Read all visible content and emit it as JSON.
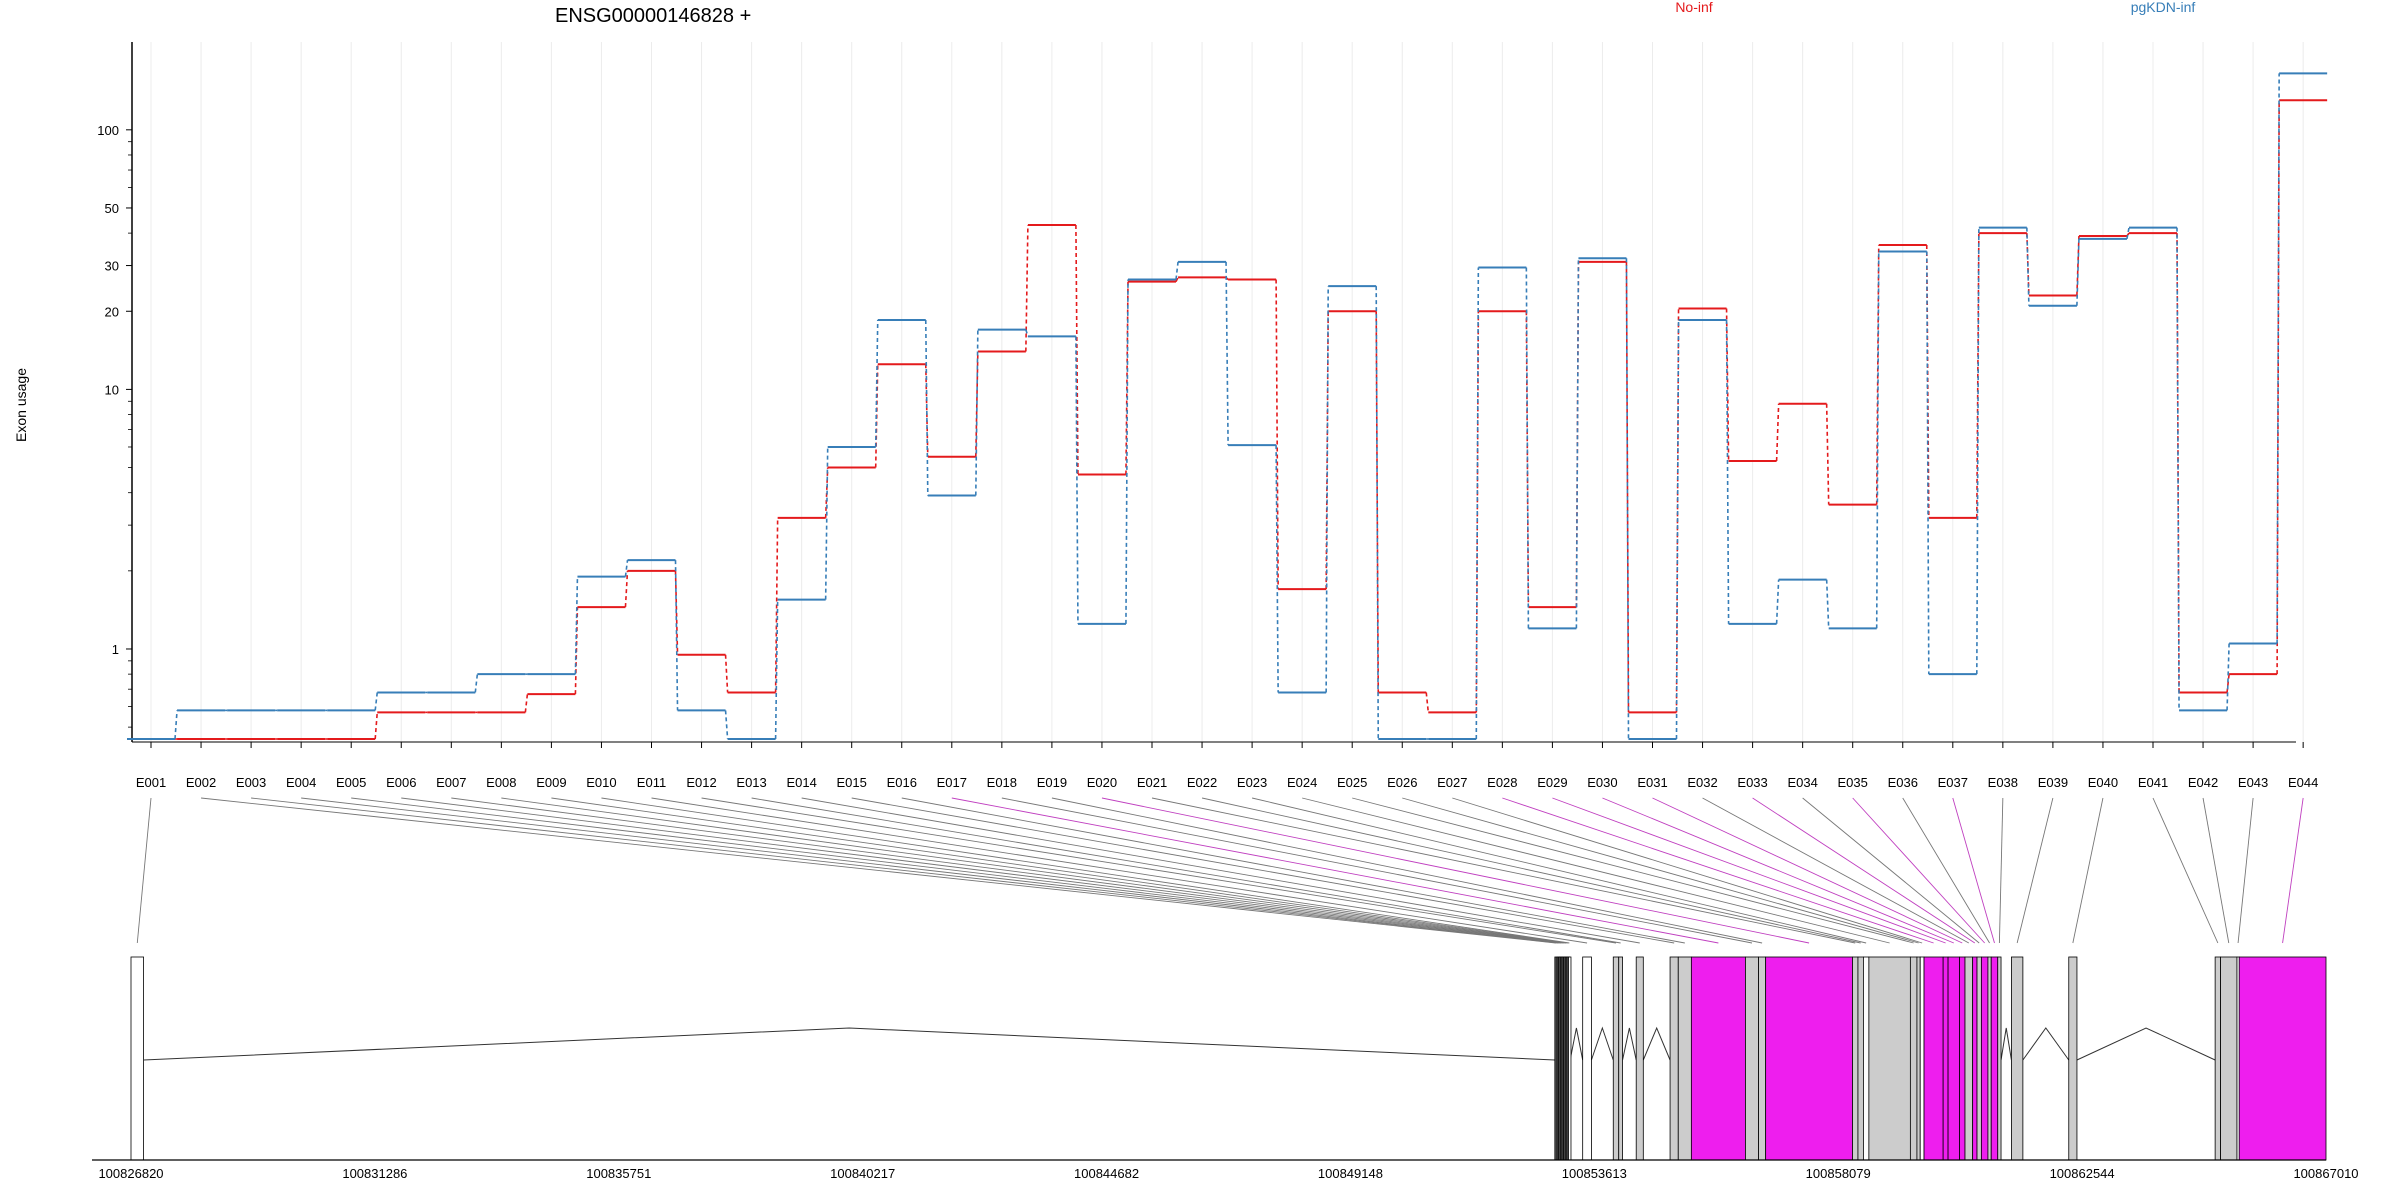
{
  "chart_data": {
    "type": "line",
    "title": "ENSG00000146828 +",
    "ylabel": "Exon usage",
    "xlabel": "",
    "y_scale": "log",
    "ylim": [
      0.45,
      170
    ],
    "yticks": [
      1,
      10,
      20,
      30,
      50,
      100
    ],
    "grid": "vertical, light",
    "legend_placement": "top",
    "categories": [
      "E001",
      "E002",
      "E003",
      "E004",
      "E005",
      "E006",
      "E007",
      "E008",
      "E009",
      "E010",
      "E011",
      "E012",
      "E013",
      "E014",
      "E015",
      "E016",
      "E017",
      "E018",
      "E019",
      "E020",
      "E021",
      "E022",
      "E023",
      "E024",
      "E025",
      "E026",
      "E027",
      "E028",
      "E029",
      "E030",
      "E031",
      "E032",
      "E033",
      "E034",
      "E035",
      "E036",
      "E037",
      "E038",
      "E039",
      "E040",
      "E041",
      "E042",
      "E043",
      "E044"
    ],
    "series": [
      {
        "name": "No-inf",
        "color": "#e41a1c",
        "line_style": "dashed",
        "values": [
          0.45,
          0.45,
          0.45,
          0.45,
          0.45,
          0.57,
          0.57,
          0.57,
          0.67,
          1.45,
          2.0,
          0.95,
          0.68,
          3.2,
          5.0,
          12.5,
          5.5,
          14.0,
          43.0,
          4.7,
          26.0,
          27.0,
          26.5,
          1.7,
          20.0,
          0.68,
          0.57,
          20.0,
          1.45,
          31.0,
          0.57,
          20.5,
          5.3,
          8.8,
          3.6,
          36.0,
          3.2,
          40.0,
          23.0,
          39.0,
          40.0,
          0.68,
          0.8,
          130.0
        ]
      },
      {
        "name": "pgKDN-inf",
        "color": "#377eb8",
        "line_style": "dashed",
        "values": [
          0.45,
          0.58,
          0.58,
          0.58,
          0.58,
          0.68,
          0.68,
          0.8,
          0.8,
          1.9,
          2.2,
          0.58,
          0.45,
          1.55,
          6.0,
          18.5,
          3.9,
          17.0,
          16.0,
          1.25,
          26.5,
          31.0,
          6.1,
          0.68,
          25.0,
          0.45,
          0.45,
          29.5,
          1.2,
          32.0,
          0.45,
          18.5,
          1.25,
          1.85,
          1.2,
          34.0,
          0.8,
          42.0,
          21.0,
          38.0,
          42.0,
          0.58,
          1.05,
          165.0
        ]
      }
    ],
    "genomic_axis": {
      "tick_labels": [
        "100826820",
        "100831286",
        "100835751",
        "100840217",
        "100844682",
        "100849148",
        "100853613",
        "100858079",
        "100862544",
        "100867010"
      ],
      "start": 100826820,
      "end": 100867010
    },
    "gene_model": {
      "exons": [
        {
          "id": "E001",
          "start": 100826820,
          "end": 100827050,
          "fill": "#ffffff"
        },
        {
          "id": "E002",
          "start": 100852890,
          "end": 100852930,
          "fill": "#555555"
        },
        {
          "id": "E003",
          "start": 100852930,
          "end": 100852960,
          "fill": "#555555"
        },
        {
          "id": "E004",
          "start": 100852960,
          "end": 100852990,
          "fill": "#555555"
        },
        {
          "id": "E005",
          "start": 100852990,
          "end": 100853020,
          "fill": "#555555"
        },
        {
          "id": "E006",
          "start": 100853020,
          "end": 100853050,
          "fill": "#555555"
        },
        {
          "id": "E007",
          "start": 100853050,
          "end": 100853080,
          "fill": "#555555"
        },
        {
          "id": "E008",
          "start": 100853080,
          "end": 100853110,
          "fill": "#555555"
        },
        {
          "id": "E009",
          "start": 100853110,
          "end": 100853140,
          "fill": "#555555"
        },
        {
          "id": "E010",
          "start": 100853140,
          "end": 100853170,
          "fill": "#ffffff"
        },
        {
          "id": "E011",
          "start": 100853400,
          "end": 100853560,
          "fill": "#ffffff"
        },
        {
          "id": "E012",
          "start": 100853960,
          "end": 100854060,
          "fill": "#cccccc"
        },
        {
          "id": "E013",
          "start": 100854060,
          "end": 100854130,
          "fill": "#cccccc"
        },
        {
          "id": "E014",
          "start": 100854380,
          "end": 100854510,
          "fill": "#cccccc"
        },
        {
          "id": "E015",
          "start": 100855000,
          "end": 100855150,
          "fill": "#cccccc"
        },
        {
          "id": "E016",
          "start": 100855150,
          "end": 100855390,
          "fill": "#cccccc"
        },
        {
          "id": "E017",
          "start": 100855390,
          "end": 100856380,
          "fill": "#ee1eee"
        },
        {
          "id": "E018",
          "start": 100856380,
          "end": 100856620,
          "fill": "#cccccc"
        },
        {
          "id": "E019",
          "start": 100856620,
          "end": 100856750,
          "fill": "#cccccc"
        },
        {
          "id": "E020",
          "start": 100856750,
          "end": 100858340,
          "fill": "#ee1eee"
        },
        {
          "id": "E021",
          "start": 100858340,
          "end": 100858440,
          "fill": "#cccccc"
        },
        {
          "id": "E022",
          "start": 100858440,
          "end": 100858540,
          "fill": "#cccccc"
        },
        {
          "id": "E023",
          "start": 100858540,
          "end": 100858640,
          "fill": "#ffffff"
        },
        {
          "id": "E024",
          "start": 100858640,
          "end": 100859400,
          "fill": "#cccccc"
        },
        {
          "id": "E025",
          "start": 100859400,
          "end": 100859520,
          "fill": "#cccccc"
        },
        {
          "id": "E026",
          "start": 100859520,
          "end": 100859580,
          "fill": "#cccccc"
        },
        {
          "id": "E027",
          "start": 100859580,
          "end": 100859650,
          "fill": "#ffffff"
        },
        {
          "id": "E028",
          "start": 100859650,
          "end": 100860000,
          "fill": "#ee1eee"
        },
        {
          "id": "E029",
          "start": 100860000,
          "end": 100860090,
          "fill": "#ee1eee"
        },
        {
          "id": "E030",
          "start": 100860090,
          "end": 100860300,
          "fill": "#ee1eee"
        },
        {
          "id": "E031",
          "start": 100860300,
          "end": 100860400,
          "fill": "#ee1eee"
        },
        {
          "id": "E032",
          "start": 100860400,
          "end": 100860540,
          "fill": "#cccccc"
        },
        {
          "id": "E033",
          "start": 100860540,
          "end": 100860620,
          "fill": "#ee1eee"
        },
        {
          "id": "E034",
          "start": 100860620,
          "end": 100860700,
          "fill": "#cccccc"
        },
        {
          "id": "E035",
          "start": 100860700,
          "end": 100860820,
          "fill": "#ee1eee"
        },
        {
          "id": "E036",
          "start": 100860820,
          "end": 100860880,
          "fill": "#cccccc"
        },
        {
          "id": "E037",
          "start": 100860880,
          "end": 100861000,
          "fill": "#ee1eee"
        },
        {
          "id": "E038",
          "start": 100861000,
          "end": 100861060,
          "fill": "#cccccc"
        },
        {
          "id": "E039",
          "start": 100861250,
          "end": 100861460,
          "fill": "#cccccc"
        },
        {
          "id": "E040",
          "start": 100862300,
          "end": 100862450,
          "fill": "#cccccc"
        },
        {
          "id": "E041",
          "start": 100864980,
          "end": 100865080,
          "fill": "#cccccc"
        },
        {
          "id": "E042",
          "start": 100865080,
          "end": 100865380,
          "fill": "#cccccc"
        },
        {
          "id": "E043",
          "start": 100865380,
          "end": 100865420,
          "fill": "#ffffff"
        },
        {
          "id": "E044",
          "start": 100865420,
          "end": 100867010,
          "fill": "#ee1eee"
        }
      ],
      "introns": [
        [
          100827050,
          100852890
        ],
        [
          100853170,
          100853400
        ],
        [
          100853560,
          100853960
        ],
        [
          100854130,
          100854380
        ],
        [
          100854510,
          100855000
        ],
        [
          100861060,
          100861250
        ],
        [
          100861460,
          100862300
        ],
        [
          100862450,
          100864980
        ]
      ]
    }
  }
}
